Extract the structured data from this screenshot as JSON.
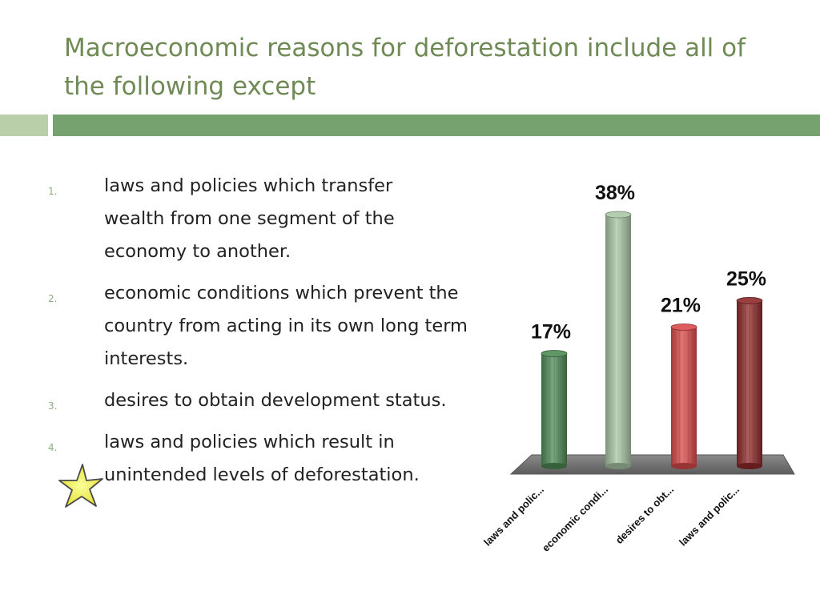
{
  "slide": {
    "title": "Macroeconomic reasons for deforestation include all of the following except"
  },
  "answers": [
    {
      "number": "1.",
      "text": "laws and policies which transfer wealth from one segment of the economy to another."
    },
    {
      "number": "2.",
      "text": "economic conditions which prevent the country from acting in its own long term interests."
    },
    {
      "number": "3.",
      "text": "desires to obtain development status."
    },
    {
      "number": "4.",
      "text": "laws and policies which result in unintended levels of deforestation."
    }
  ],
  "correct_marker": {
    "icon": "star-icon",
    "answer": "4."
  },
  "chart_data": {
    "type": "bar",
    "categories": [
      "laws and polic...",
      "economic condi...",
      "desires to obt...",
      "laws and polic..."
    ],
    "values": [
      17,
      38,
      21,
      25
    ],
    "data_labels": [
      "17%",
      "38%",
      "21%",
      "25%"
    ],
    "colors": [
      "#4f8a55",
      "#a9c7a4",
      "#d94a4a",
      "#8e2a2a"
    ],
    "ylim": [
      0,
      38
    ],
    "grid": false
  }
}
